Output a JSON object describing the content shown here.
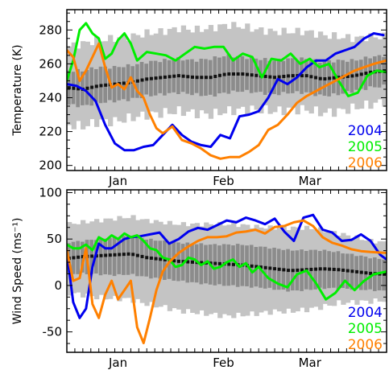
{
  "chart_data": [
    {
      "type": "line",
      "ylabel": "Temperature (K)",
      "ylim": [
        197,
        292
      ],
      "yticks": [
        200,
        220,
        240,
        260,
        280
      ],
      "xlim": [
        0,
        100
      ],
      "xticks": [
        {
          "x": 16,
          "label": "Jan"
        },
        {
          "x": 49,
          "label": "Feb"
        },
        {
          "x": 76,
          "label": "Mar"
        }
      ],
      "grid": false,
      "legend_position": "bottom-right",
      "climatology": {
        "x": [
          0,
          5,
          10,
          15,
          20,
          25,
          30,
          35,
          40,
          45,
          50,
          55,
          60,
          65,
          70,
          75,
          80,
          85,
          90,
          95,
          100
        ],
        "mean": [
          246,
          245,
          247,
          248,
          249,
          251,
          252,
          253,
          252,
          252,
          254,
          254,
          253,
          252,
          253,
          253,
          251,
          252,
          253,
          255,
          256
        ],
        "inner": [
          [
            236,
            256
          ],
          [
            235,
            256
          ],
          [
            237,
            258
          ],
          [
            238,
            258
          ],
          [
            239,
            259
          ],
          [
            241,
            261
          ],
          [
            242,
            262
          ],
          [
            243,
            263
          ],
          [
            242,
            262
          ],
          [
            241,
            263
          ],
          [
            243,
            265
          ],
          [
            244,
            264
          ],
          [
            243,
            263
          ],
          [
            242,
            262
          ],
          [
            243,
            263
          ],
          [
            243,
            263
          ],
          [
            241,
            261
          ],
          [
            242,
            262
          ],
          [
            244,
            262
          ],
          [
            246,
            264
          ],
          [
            247,
            265
          ]
        ],
        "outer": [
          [
            224,
            270
          ],
          [
            223,
            272
          ],
          [
            226,
            274
          ],
          [
            226,
            275
          ],
          [
            228,
            276
          ],
          [
            230,
            278
          ],
          [
            231,
            279
          ],
          [
            232,
            281
          ],
          [
            231,
            280
          ],
          [
            230,
            281
          ],
          [
            232,
            283
          ],
          [
            233,
            282
          ],
          [
            233,
            280
          ],
          [
            232,
            279
          ],
          [
            233,
            279
          ],
          [
            233,
            279
          ],
          [
            231,
            277
          ],
          [
            232,
            276
          ],
          [
            234,
            275
          ],
          [
            236,
            276
          ],
          [
            238,
            276
          ]
        ]
      },
      "series": [
        {
          "name": "2004",
          "color": "#0000ee",
          "x": [
            0,
            3,
            6,
            9,
            12,
            15,
            18,
            21,
            24,
            27,
            30,
            33,
            36,
            39,
            42,
            45,
            48,
            51,
            54,
            57,
            60,
            63,
            66,
            69,
            72,
            75,
            78,
            81,
            84,
            87,
            90,
            93,
            96,
            99
          ],
          "y": [
            248,
            247,
            244,
            238,
            224,
            213,
            209,
            209,
            211,
            212,
            218,
            224,
            218,
            214,
            212,
            211,
            218,
            216,
            229,
            230,
            232,
            240,
            251,
            248,
            252,
            258,
            262,
            262,
            266,
            268,
            270,
            275,
            278,
            277
          ]
        },
        {
          "name": "2005",
          "color": "#00ee00",
          "x": [
            0,
            2,
            4,
            6,
            8,
            10,
            12,
            14,
            16,
            18,
            20,
            22,
            25,
            28,
            31,
            34,
            37,
            40,
            43,
            46,
            49,
            52,
            55,
            58,
            61,
            64,
            67,
            70,
            73,
            76,
            79,
            82,
            85,
            88,
            91,
            94,
            97,
            100
          ],
          "y": [
            250,
            262,
            280,
            284,
            278,
            275,
            263,
            266,
            274,
            278,
            272,
            262,
            267,
            266,
            265,
            262,
            266,
            270,
            269,
            270,
            270,
            262,
            266,
            264,
            252,
            263,
            262,
            266,
            260,
            263,
            258,
            260,
            250,
            241,
            243,
            253,
            256,
            255
          ]
        },
        {
          "name": "2006",
          "color": "#ff8000",
          "x": [
            0,
            2,
            4,
            6,
            8,
            10,
            12,
            14,
            16,
            18,
            20,
            22,
            24,
            26,
            28,
            30,
            33,
            36,
            39,
            42,
            45,
            48,
            51,
            54,
            57,
            60,
            63,
            66,
            69,
            72,
            75,
            78,
            81,
            84,
            87,
            90,
            93,
            96,
            100
          ],
          "y": [
            268,
            264,
            250,
            256,
            264,
            272,
            258,
            246,
            248,
            245,
            252,
            244,
            240,
            230,
            222,
            219,
            223,
            215,
            213,
            210,
            206,
            204,
            205,
            205,
            208,
            212,
            221,
            224,
            230,
            237,
            241,
            244,
            247,
            250,
            253,
            256,
            258,
            260,
            262
          ]
        }
      ]
    },
    {
      "type": "line",
      "ylabel": "Wind Speed (ms⁻¹)",
      "ylim": [
        -72,
        103
      ],
      "yticks": [
        -50,
        0,
        50,
        100
      ],
      "xlim": [
        0,
        100
      ],
      "xticks": [
        {
          "x": 16,
          "label": "Jan"
        },
        {
          "x": 49,
          "label": "Feb"
        },
        {
          "x": 76,
          "label": "Mar"
        }
      ],
      "grid": false,
      "legend_position": "bottom-right",
      "climatology": {
        "x": [
          0,
          5,
          10,
          15,
          20,
          25,
          30,
          35,
          40,
          45,
          50,
          55,
          60,
          65,
          70,
          75,
          80,
          85,
          90,
          95,
          100
        ],
        "mean": [
          29,
          31,
          32,
          33,
          34,
          30,
          28,
          26,
          25,
          24,
          23,
          22,
          20,
          18,
          16,
          17,
          18,
          17,
          15,
          13,
          12
        ],
        "inner": [
          [
            12,
            46
          ],
          [
            13,
            48
          ],
          [
            12,
            50
          ],
          [
            11,
            52
          ],
          [
            12,
            54
          ],
          [
            9,
            50
          ],
          [
            7,
            48
          ],
          [
            5,
            46
          ],
          [
            3,
            45
          ],
          [
            1,
            44
          ],
          [
            0,
            44
          ],
          [
            -1,
            44
          ],
          [
            -2,
            42
          ],
          [
            -4,
            40
          ],
          [
            -6,
            38
          ],
          [
            -5,
            38
          ],
          [
            -3,
            38
          ],
          [
            -3,
            36
          ],
          [
            -4,
            33
          ],
          [
            -5,
            30
          ],
          [
            -6,
            28
          ]
        ],
        "outer": [
          [
            -8,
            66
          ],
          [
            -10,
            68
          ],
          [
            -13,
            70
          ],
          [
            -14,
            72
          ],
          [
            -15,
            74
          ],
          [
            -20,
            70
          ],
          [
            -23,
            68
          ],
          [
            -27,
            66
          ],
          [
            -29,
            66
          ],
          [
            -31,
            66
          ],
          [
            -33,
            66
          ],
          [
            -32,
            65
          ],
          [
            -30,
            63
          ],
          [
            -28,
            62
          ],
          [
            -28,
            62
          ],
          [
            -26,
            62
          ],
          [
            -23,
            60
          ],
          [
            -19,
            56
          ],
          [
            -18,
            52
          ],
          [
            -17,
            48
          ],
          [
            -16,
            46
          ]
        ]
      },
      "series": [
        {
          "name": "2004",
          "color": "#0000ee",
          "x": [
            0,
            2,
            4,
            6,
            8,
            10,
            12,
            14,
            16,
            18,
            20,
            23,
            26,
            29,
            32,
            35,
            38,
            41,
            44,
            47,
            50,
            53,
            56,
            59,
            62,
            65,
            68,
            71,
            74,
            77,
            80,
            83,
            86,
            89,
            92,
            95,
            98,
            100
          ],
          "y": [
            35,
            -18,
            -35,
            -25,
            20,
            45,
            40,
            40,
            45,
            50,
            52,
            53,
            55,
            57,
            45,
            50,
            58,
            62,
            60,
            65,
            70,
            68,
            73,
            70,
            66,
            72,
            58,
            48,
            73,
            76,
            60,
            57,
            48,
            49,
            55,
            48,
            33,
            28
          ]
        },
        {
          "name": "2005",
          "color": "#00ee00",
          "x": [
            0,
            2,
            4,
            6,
            8,
            10,
            12,
            14,
            16,
            18,
            20,
            22,
            24,
            26,
            28,
            30,
            32,
            34,
            36,
            38,
            40,
            42,
            44,
            46,
            48,
            50,
            52,
            54,
            56,
            58,
            60,
            63,
            66,
            69,
            72,
            75,
            78,
            81,
            84,
            87,
            90,
            93,
            96,
            100
          ],
          "y": [
            44,
            40,
            40,
            44,
            38,
            52,
            48,
            54,
            50,
            56,
            52,
            54,
            48,
            40,
            38,
            30,
            28,
            20,
            22,
            30,
            28,
            22,
            26,
            18,
            20,
            25,
            28,
            20,
            24,
            14,
            20,
            8,
            2,
            -2,
            12,
            16,
            2,
            -15,
            -8,
            5,
            -5,
            5,
            12,
            15
          ]
        },
        {
          "name": "2006",
          "color": "#ff8000",
          "x": [
            0,
            2,
            4,
            6,
            8,
            10,
            12,
            14,
            16,
            18,
            20,
            22,
            24,
            26,
            28,
            30,
            32,
            35,
            38,
            41,
            44,
            47,
            50,
            53,
            56,
            59,
            62,
            65,
            68,
            71,
            74,
            77,
            80,
            83,
            86,
            89,
            92,
            95,
            100
          ],
          "y": [
            38,
            5,
            8,
            40,
            -20,
            -35,
            -10,
            5,
            -15,
            -5,
            5,
            -45,
            -62,
            -35,
            -5,
            15,
            25,
            35,
            42,
            48,
            52,
            52,
            53,
            57,
            58,
            60,
            56,
            63,
            64,
            68,
            70,
            64,
            52,
            46,
            43,
            39,
            37,
            36,
            35
          ]
        }
      ]
    }
  ]
}
